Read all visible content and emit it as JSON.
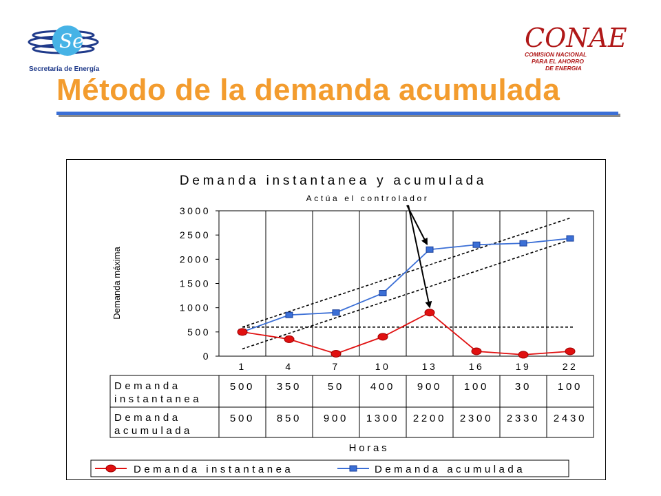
{
  "header": {
    "title": "Método de la demanda acumulada",
    "logo_left_caption": "Secretaría de Energía",
    "logo_left_mark": "Se",
    "logo_right_mark": "CONAE",
    "logo_right_sub": [
      "COMISION NACIONAL",
      "PARA EL AHORRO",
      "DE ENERGIA"
    ]
  },
  "colors": {
    "title": "#f39c2e",
    "rule": "#3b6fd6",
    "series_instantanea": "#e01010",
    "series_acumulada": "#3b6fd6"
  },
  "chart_data": {
    "type": "line",
    "title": "Demanda instantanea y acumulada",
    "xlabel": "Horas",
    "ylabel": "Demanda máxima",
    "categories": [
      "1",
      "4",
      "7",
      "10",
      "13",
      "16",
      "19",
      "22"
    ],
    "yticks": [
      "3000",
      "2500",
      "2000",
      "1500",
      "1000",
      "500",
      "0"
    ],
    "ylim": [
      0,
      3000
    ],
    "grid": true,
    "legend_position": "bottom",
    "annotation": "Actúa el controlador",
    "threshold": 600,
    "series": [
      {
        "name": "Demanda instantanea",
        "row_label": [
          "Demanda",
          "instantanea"
        ],
        "values": [
          500,
          350,
          50,
          400,
          900,
          100,
          30,
          100
        ],
        "labels": [
          "500",
          "350",
          "50",
          "400",
          "900",
          "100",
          "30",
          "100"
        ]
      },
      {
        "name": "Demanda acumulada",
        "row_label": [
          "Demanda",
          "acumulada"
        ],
        "values": [
          500,
          850,
          900,
          1300,
          2200,
          2300,
          2330,
          2430
        ],
        "labels": [
          "500",
          "850",
          "900",
          "1300",
          "2200",
          "2300",
          "2330",
          "2430"
        ]
      }
    ],
    "envelope_lower": [
      [
        1,
        150
      ],
      [
        22,
        2400
      ]
    ],
    "envelope_upper": [
      [
        1,
        600
      ],
      [
        22,
        2850
      ]
    ]
  }
}
